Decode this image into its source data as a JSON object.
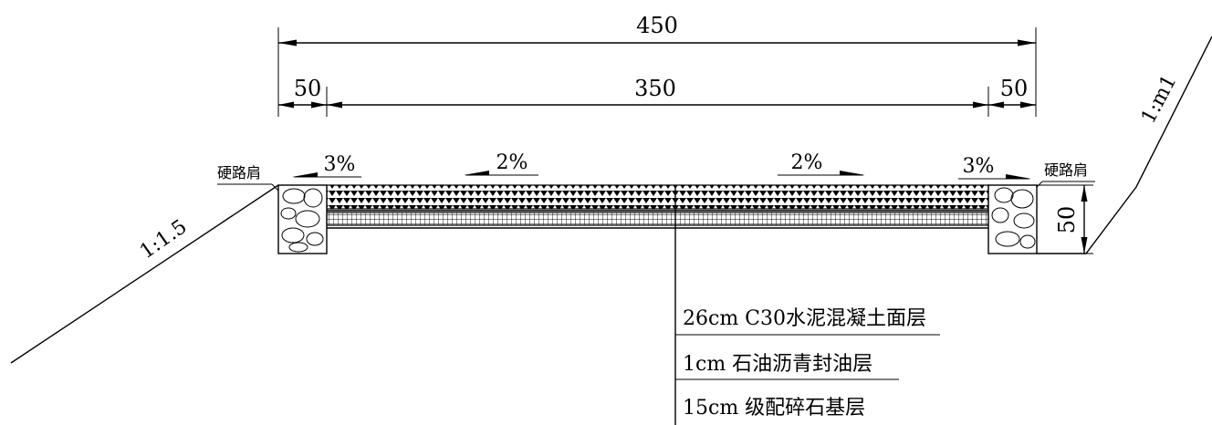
{
  "dimensions": {
    "total_width": "450",
    "carriageway_width": "350",
    "left_shoulder_width": "50",
    "right_shoulder_width": "50",
    "shoulder_height": "50"
  },
  "slopes": {
    "left_shoulder_crossfall": "3%",
    "left_lane_crossfall": "2%",
    "right_lane_crossfall": "2%",
    "right_shoulder_crossfall": "3%",
    "left_embankment": "1:1.5",
    "right_cut": "1:m1"
  },
  "labels": {
    "left_shoulder": "硬路肩",
    "right_shoulder": "硬路肩"
  },
  "layers": [
    {
      "text": "26cm C30水泥混凝土面层"
    },
    {
      "text": "1cm 石油沥青封油层"
    },
    {
      "text": "15cm 级配碎石基层"
    }
  ]
}
